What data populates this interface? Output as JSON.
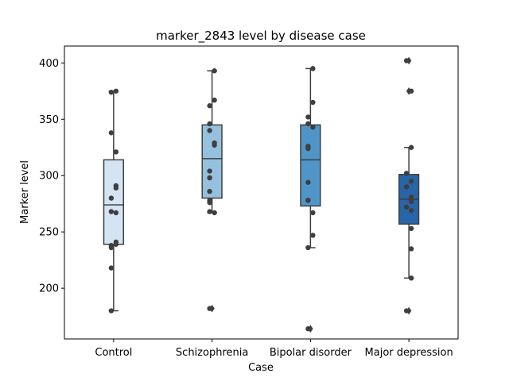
{
  "chart_data": {
    "type": "boxplot",
    "title": "marker_2843 level by disease case",
    "xlabel": "Case",
    "ylabel": "Marker level",
    "ylim": [
      155,
      415
    ],
    "yticks": [
      200,
      250,
      300,
      350,
      400
    ],
    "grid": false,
    "categories": [
      "Control",
      "Schizophrenia",
      "Bipolar disorder",
      "Major depression"
    ],
    "colors": [
      "#d5e4f3",
      "#95c1df",
      "#4f95c8",
      "#2865a8"
    ],
    "boxes": [
      {
        "q1": 239,
        "median": 274,
        "q3": 314,
        "whisker_low": 180,
        "whisker_high": 375,
        "outliers": []
      },
      {
        "q1": 280,
        "median": 315,
        "q3": 345,
        "whisker_low": 267,
        "whisker_high": 393,
        "outliers": [
          182
        ]
      },
      {
        "q1": 273,
        "median": 314,
        "q3": 345,
        "whisker_low": 236,
        "whisker_high": 395,
        "outliers": [
          164
        ]
      },
      {
        "q1": 257,
        "median": 279,
        "q3": 301,
        "whisker_low": 209,
        "whisker_high": 325,
        "outliers": [
          402,
          375,
          180
        ]
      }
    ],
    "points": [
      [
        375,
        374,
        338,
        321,
        291,
        289,
        280,
        268,
        267,
        241,
        239,
        238,
        236,
        218,
        180
      ],
      [
        393,
        367,
        362,
        346,
        340,
        329,
        327,
        304,
        298,
        286,
        278,
        276,
        268,
        267,
        182
      ],
      [
        395,
        365,
        352,
        346,
        343,
        326,
        324,
        294,
        278,
        278,
        267,
        247,
        236,
        164
      ],
      [
        402,
        375,
        325,
        302,
        295,
        290,
        281,
        279,
        277,
        272,
        269,
        253,
        235,
        209,
        180
      ]
    ]
  }
}
